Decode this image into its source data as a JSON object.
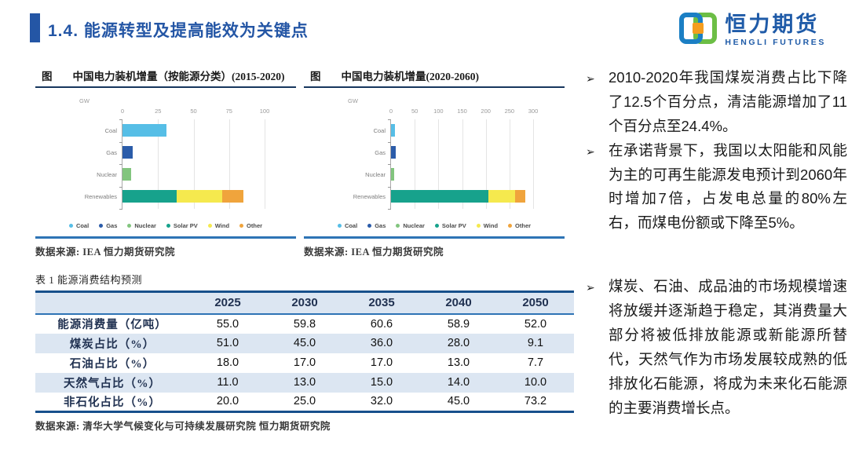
{
  "header": {
    "title": "1.4. 能源转型及提高能效为关键点"
  },
  "logo": {
    "name_cn": "恒力期货",
    "name_en": "HENGLI FUTURES"
  },
  "figure_prefix": "图",
  "colors": {
    "accent": "#2456A5",
    "separator": "#2E74B5",
    "table_border": "#17508C",
    "row_shade": "#dce6f2",
    "series": {
      "Coal": "#56BEE6",
      "Gas": "#2B5CA9",
      "Nuclear": "#82C57E",
      "Solar PV": "#17A28C",
      "Wind": "#F5E94E",
      "Other": "#F0A43C"
    }
  },
  "chart_data": [
    {
      "type": "bar",
      "orientation": "horizontal",
      "title": "中国电力装机增量（按能源分类）(2015-2020)",
      "unit": "GW",
      "xlim": [
        0,
        100
      ],
      "ticks": [
        0,
        25,
        50,
        75,
        100
      ],
      "grid": true,
      "categories": [
        "Coal",
        "Gas",
        "Nuclear",
        "Renewables"
      ],
      "bars": [
        {
          "category": "Coal",
          "segments": [
            {
              "name": "Coal",
              "value": 31
            }
          ]
        },
        {
          "category": "Gas",
          "segments": [
            {
              "name": "Gas",
              "value": 7
            }
          ]
        },
        {
          "category": "Nuclear",
          "segments": [
            {
              "name": "Nuclear",
              "value": 6
            }
          ]
        },
        {
          "category": "Renewables",
          "segments": [
            {
              "name": "Solar PV",
              "value": 38
            },
            {
              "name": "Wind",
              "value": 32
            },
            {
              "name": "Other",
              "value": 15
            }
          ]
        }
      ],
      "legend": [
        "Coal",
        "Gas",
        "Nuclear",
        "Solar PV",
        "Wind",
        "Other"
      ],
      "legend_position": "bottom",
      "source": "数据来源: IEA 恒力期货研究院"
    },
    {
      "type": "bar",
      "orientation": "horizontal",
      "title": "中国电力装机增量(2020-2060)",
      "unit": "GW",
      "xlim": [
        0,
        300
      ],
      "ticks": [
        0,
        50,
        100,
        150,
        200,
        250,
        300
      ],
      "grid": true,
      "categories": [
        "Coal",
        "Gas",
        "Nuclear",
        "Renewables"
      ],
      "bars": [
        {
          "category": "Coal",
          "segments": [
            {
              "name": "Coal",
              "value": 8
            }
          ]
        },
        {
          "category": "Gas",
          "segments": [
            {
              "name": "Gas",
              "value": 10
            }
          ]
        },
        {
          "category": "Nuclear",
          "segments": [
            {
              "name": "Nuclear",
              "value": 6
            }
          ]
        },
        {
          "category": "Renewables",
          "segments": [
            {
              "name": "Solar PV",
              "value": 205
            },
            {
              "name": "Wind",
              "value": 57
            },
            {
              "name": "Other",
              "value": 22
            }
          ]
        }
      ],
      "legend": [
        "Coal",
        "Gas",
        "Nuclear",
        "Solar PV",
        "Wind",
        "Other"
      ],
      "legend_position": "bottom",
      "source": "数据来源: IEA 恒力期货研究院"
    },
    {
      "type": "table",
      "title": "表 1 能源消费结构预测",
      "columns": [
        "",
        "2025",
        "2030",
        "2035",
        "2040",
        "2050"
      ],
      "rows": [
        {
          "label": "能源消费量（亿吨）",
          "values": [
            "55.0",
            "59.8",
            "60.6",
            "58.9",
            "52.0"
          ]
        },
        {
          "label": "煤炭占比（%）",
          "values": [
            "51.0",
            "45.0",
            "36.0",
            "28.0",
            "9.1"
          ]
        },
        {
          "label": "石油占比（%）",
          "values": [
            "18.0",
            "17.0",
            "17.0",
            "13.0",
            "7.7"
          ]
        },
        {
          "label": "天然气占比（%）",
          "values": [
            "11.0",
            "13.0",
            "15.0",
            "14.0",
            "10.0"
          ]
        },
        {
          "label": "非石化占比（%）",
          "values": [
            "20.0",
            "25.0",
            "32.0",
            "45.0",
            "73.2"
          ]
        }
      ],
      "source": "数据来源: 清华大学气候变化与可持续发展研究院 恒力期货研究院"
    }
  ],
  "bullets": {
    "marker": "➢",
    "items": [
      "2010-2020年我国煤炭消费占比下降了12.5个百分点，清洁能源增加了11个百分点至24.4%。",
      "在承诺背景下，我国以太阳能和风能为主的可再生能源发电预计到2060年时增加7倍，占发电总量的80%左右，而煤电份额或下降至5%。",
      "煤炭、石油、成品油的市场规模增速将放缓并逐渐趋于稳定，其消费量大部分将被低排放能源或新能源所替代，天然气作为市场发展较成熟的低排放化石能源，将成为未来化石能源的主要消费增长点。"
    ]
  }
}
